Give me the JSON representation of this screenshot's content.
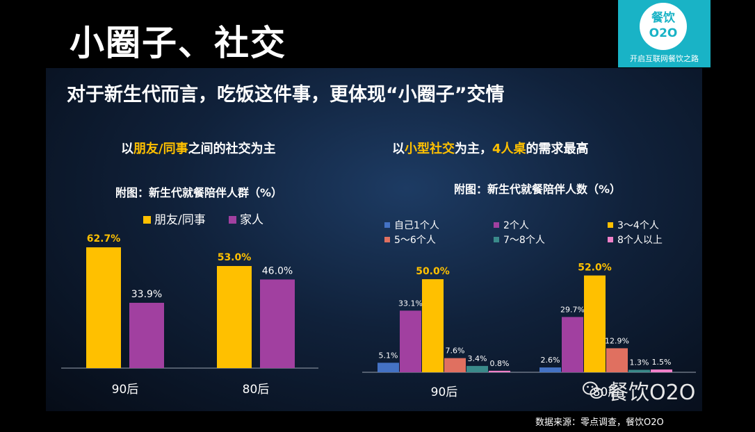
{
  "title": "小圈子、社交",
  "logo": {
    "main": "餐饮O2O",
    "sub": "开启互联网餐饮之路"
  },
  "headline": "对于新生代而言，吃饭这件事，更体现“小圈子”交情",
  "left_subtitle": {
    "pre": "以",
    "hl1": "朋友/同事",
    "post": "之间的社交为主"
  },
  "right_subtitle": {
    "pre": "以",
    "hl1": "小型社交",
    "mid": "为主，",
    "hl2": "4人桌",
    "post": "的需求最高"
  },
  "source": "数据来源：零点调查，餐饮O2O",
  "watermark": "餐饮O2O",
  "chart_data": [
    {
      "type": "bar",
      "title": "附图：新生代就餐陪伴人群（%）",
      "categories": [
        "90后",
        "80后"
      ],
      "series": [
        {
          "name": "朋友/同事",
          "color": "#ffc000",
          "values": [
            62.7,
            53.0
          ],
          "labels": [
            "62.7%",
            "53.0%"
          ]
        },
        {
          "name": "家人",
          "color": "#a140a0",
          "values": [
            33.9,
            46.0
          ],
          "labels": [
            "33.9%",
            "46.0%"
          ]
        }
      ],
      "ylim": [
        0,
        70
      ],
      "legend": "top",
      "grid": false
    },
    {
      "type": "bar",
      "title": "附图：新生代就餐陪伴人数（%）",
      "categories": [
        "90后",
        "80后"
      ],
      "series": [
        {
          "name": "自己1个人",
          "color": "#4472c4",
          "values": [
            5.1,
            2.6
          ],
          "labels": [
            "5.1%",
            "2.6%"
          ]
        },
        {
          "name": "2个人",
          "color": "#a140a0",
          "values": [
            33.1,
            29.7
          ],
          "labels": [
            "33.1%",
            "29.7%"
          ]
        },
        {
          "name": "3～4个人",
          "color": "#ffc000",
          "values": [
            50.0,
            52.0
          ],
          "labels": [
            "50.0%",
            "52.0%"
          ]
        },
        {
          "name": "5～6个人",
          "color": "#e07060",
          "values": [
            7.6,
            12.9
          ],
          "labels": [
            "7.6%",
            "12.9%"
          ]
        },
        {
          "name": "7～8个人",
          "color": "#3a8a8a",
          "values": [
            3.4,
            1.3
          ],
          "labels": [
            "3.4%",
            "1.3%"
          ]
        },
        {
          "name": "8个人以上",
          "color": "#f080c8",
          "values": [
            0.8,
            1.5
          ],
          "labels": [
            "0.8%",
            "1.5%"
          ]
        }
      ],
      "ylim": [
        0,
        60
      ],
      "legend": "top",
      "grid": false
    }
  ]
}
